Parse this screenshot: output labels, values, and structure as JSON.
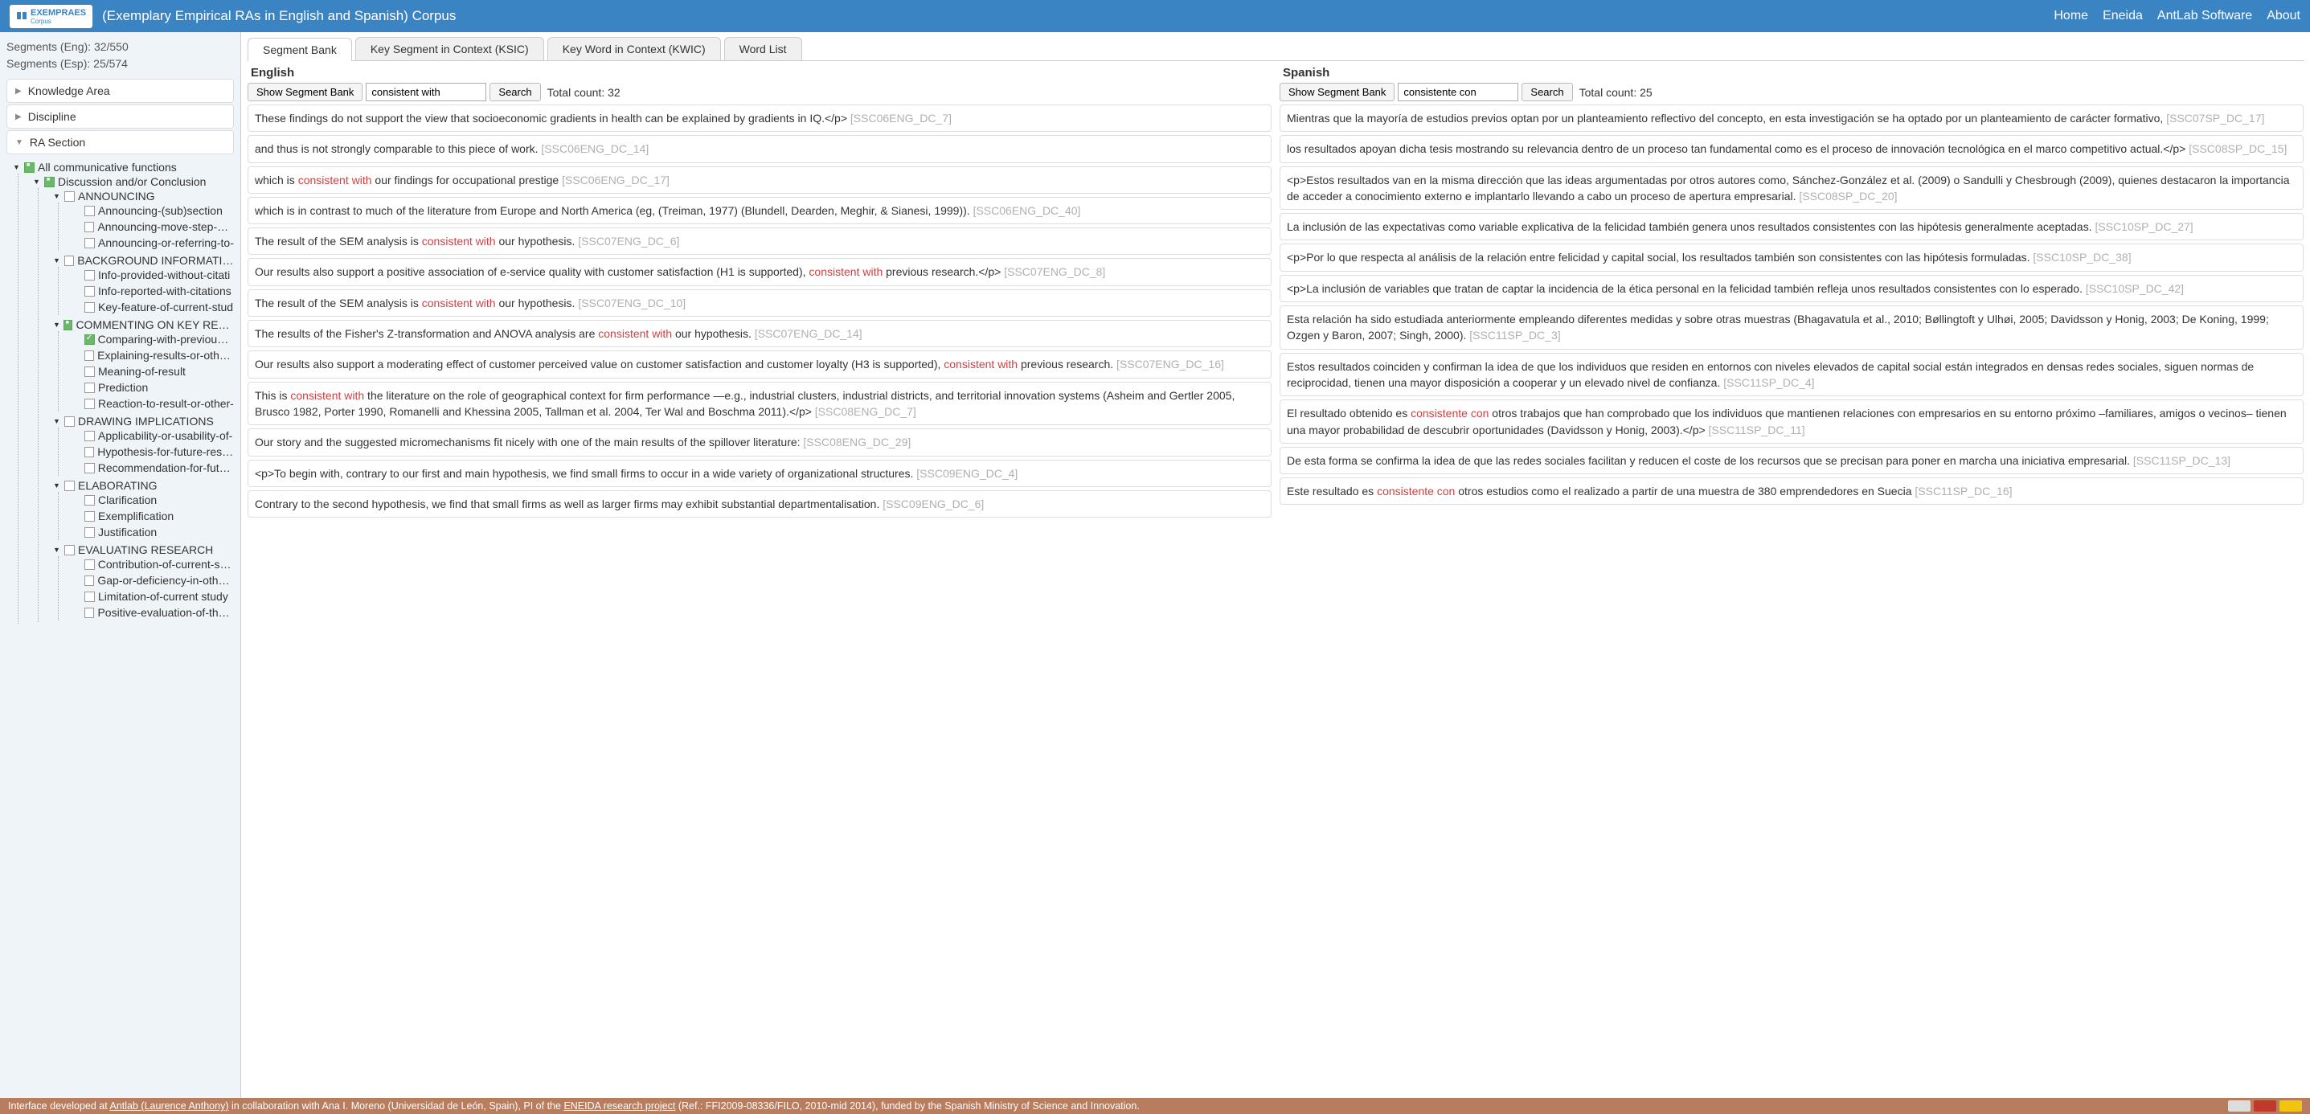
{
  "header": {
    "logo_text": "EXEMPRAES",
    "logo_sub": "Corpus",
    "title": "(Exemplary Empirical RAs in English and Spanish) Corpus",
    "nav": [
      "Home",
      "Eneida",
      "AntLab Software",
      "About"
    ]
  },
  "sidebar": {
    "stats_eng": "Segments (Eng): 32/550",
    "stats_esp": "Segments (Esp): 25/574",
    "accordions": [
      {
        "label": "Knowledge Area",
        "expanded": false
      },
      {
        "label": "Discipline",
        "expanded": false
      },
      {
        "label": "RA Section",
        "expanded": true
      }
    ],
    "tree": {
      "root": {
        "label": "All communicative functions",
        "state": "partial",
        "children": [
          {
            "label": "Discussion and/or Conclusion",
            "state": "partial",
            "expanded": true,
            "children": [
              {
                "label": "ANNOUNCING",
                "state": "",
                "expanded": true,
                "children": [
                  {
                    "label": "Announcing-(sub)section",
                    "state": ""
                  },
                  {
                    "label": "Announcing-move-step-or-p",
                    "state": ""
                  },
                  {
                    "label": "Announcing-or-referring-to-",
                    "state": ""
                  }
                ]
              },
              {
                "label": "BACKGROUND INFORMATION",
                "state": "",
                "expanded": true,
                "children": [
                  {
                    "label": "Info-provided-without-citati",
                    "state": ""
                  },
                  {
                    "label": "Info-reported-with-citations",
                    "state": ""
                  },
                  {
                    "label": "Key-feature-of-current-stud",
                    "state": ""
                  }
                ]
              },
              {
                "label": "COMMENTING ON KEY RESULTS",
                "state": "partial",
                "expanded": true,
                "children": [
                  {
                    "label": "Comparing-with-previous-re",
                    "state": "checked"
                  },
                  {
                    "label": "Explaining-results-or-other-p",
                    "state": ""
                  },
                  {
                    "label": "Meaning-of-result",
                    "state": ""
                  },
                  {
                    "label": "Prediction",
                    "state": ""
                  },
                  {
                    "label": "Reaction-to-result-or-other-",
                    "state": ""
                  }
                ]
              },
              {
                "label": "DRAWING IMPLICATIONS",
                "state": "",
                "expanded": true,
                "children": [
                  {
                    "label": "Applicability-or-usability-of-",
                    "state": ""
                  },
                  {
                    "label": "Hypothesis-for-future-resear",
                    "state": ""
                  },
                  {
                    "label": "Recommendation-for-future",
                    "state": ""
                  }
                ]
              },
              {
                "label": "ELABORATING",
                "state": "",
                "expanded": true,
                "children": [
                  {
                    "label": "Clarification",
                    "state": ""
                  },
                  {
                    "label": "Exemplification",
                    "state": ""
                  },
                  {
                    "label": "Justification",
                    "state": ""
                  }
                ]
              },
              {
                "label": "EVALUATING RESEARCH",
                "state": "",
                "expanded": true,
                "children": [
                  {
                    "label": "Contribution-of-current-stud",
                    "state": ""
                  },
                  {
                    "label": "Gap-or-deficiency-in-others-",
                    "state": ""
                  },
                  {
                    "label": "Limitation-of-current study",
                    "state": ""
                  },
                  {
                    "label": "Positive-evaluation-of-the-st",
                    "state": ""
                  }
                ]
              }
            ]
          }
        ]
      }
    }
  },
  "tabs": [
    "Segment Bank",
    "Key Segment in Context (KSIC)",
    "Key Word in Context (KWIC)",
    "Word List"
  ],
  "active_tab": 0,
  "panels": {
    "english": {
      "title": "English",
      "show_btn": "Show Segment Bank",
      "search_value": "consistent with",
      "search_btn": "Search",
      "total": "Total count: 32",
      "highlight": "consistent with",
      "segments": [
        {
          "text": "These findings do not support the view that socioeconomic gradients in health can be explained by gradients in IQ.</p>",
          "ref": "[SSC06ENG_DC_7]"
        },
        {
          "text": "and thus is not strongly comparable to this piece of work.",
          "ref": "[SSC06ENG_DC_14]"
        },
        {
          "text": "which is consistent with our findings for occupational prestige",
          "ref": "[SSC06ENG_DC_17]"
        },
        {
          "text": "which is in contrast to much of the literature from Europe and North America (eg, (Treiman, 1977) (Blundell, Dearden, Meghir, & Sianesi, 1999)).",
          "ref": "[SSC06ENG_DC_40]"
        },
        {
          "text": "The result of the SEM analysis is consistent with our hypothesis.",
          "ref": "[SSC07ENG_DC_6]"
        },
        {
          "text": "Our results also support a positive association of e-service quality with customer satisfaction (H1 is supported), consistent with previous research.</p>",
          "ref": "[SSC07ENG_DC_8]"
        },
        {
          "text": "The result of the SEM analysis is consistent with our hypothesis.",
          "ref": "[SSC07ENG_DC_10]"
        },
        {
          "text": "The results of the Fisher's Z-transformation and ANOVA analysis are consistent with our hypothesis.",
          "ref": "[SSC07ENG_DC_14]"
        },
        {
          "text": "Our results also support a moderating effect of customer perceived value on customer satisfaction and customer loyalty (H3 is supported), consistent with previous research.",
          "ref": "[SSC07ENG_DC_16]"
        },
        {
          "text": "This is consistent with the literature on the role of geographical context for firm performance —e.g., industrial clusters, industrial districts, and territorial innovation systems (Asheim and Gertler 2005, Brusco 1982, Porter 1990, Romanelli and Khessina 2005, Tallman et al. 2004, Ter Wal and Boschma 2011).</p>",
          "ref": "[SSC08ENG_DC_7]"
        },
        {
          "text": "Our story and the suggested micromechanisms fit nicely with one of the main results of the spillover literature:",
          "ref": "[SSC08ENG_DC_29]"
        },
        {
          "text": "<p>To begin with, contrary to our first and main hypothesis, we find small firms to occur in a wide variety of organizational structures.",
          "ref": "[SSC09ENG_DC_4]"
        },
        {
          "text": "Contrary to the second hypothesis, we find that small firms as well as larger firms may exhibit substantial departmentalisation.",
          "ref": "[SSC09ENG_DC_6]"
        }
      ]
    },
    "spanish": {
      "title": "Spanish",
      "show_btn": "Show Segment Bank",
      "search_value": "consistente con",
      "search_btn": "Search",
      "total": "Total count: 25",
      "highlight": "consistente con",
      "segments": [
        {
          "text": "Mientras que la mayoría de estudios previos optan por un planteamiento reflectivo del concepto, en esta investigación se ha optado por un planteamiento de carácter formativo,",
          "ref": "[SSC07SP_DC_17]"
        },
        {
          "text": "los resultados apoyan dicha tesis mostrando su relevancia dentro de un proceso tan fundamental como es el proceso de innovación tecnológica en el marco competitivo actual.</p>",
          "ref": "[SSC08SP_DC_15]"
        },
        {
          "text": "<p>Estos resultados van en la misma dirección que las ideas argumentadas por otros autores como, Sánchez-González et al. (2009) o Sandulli y Chesbrough (2009), quienes destacaron la importancia de acceder a conocimiento externo e implantarlo llevando a cabo un proceso de apertura empresarial.",
          "ref": "[SSC08SP_DC_20]"
        },
        {
          "text": "La inclusión de las expectativas como variable explicativa de la felicidad también genera unos resultados consistentes con las hipótesis generalmente aceptadas.",
          "ref": "[SSC10SP_DC_27]"
        },
        {
          "text": "<p>Por lo que respecta al análisis de la relación entre felicidad y capital social, los resultados también son consistentes con las hipótesis formuladas.",
          "ref": "[SSC10SP_DC_38]"
        },
        {
          "text": "<p>La inclusión de variables que tratan de captar la incidencia de la ética personal en la felicidad también refleja unos resultados consistentes con lo esperado.",
          "ref": "[SSC10SP_DC_42]"
        },
        {
          "text": "Esta relación ha sido estudiada anteriormente empleando diferentes medidas y sobre otras muestras (Bhagavatula et al., 2010; Bøllingtoft y Ulhøi, 2005; Davidsson y Honig, 2003; De Koning, 1999; Ozgen y Baron, 2007; Singh, 2000).",
          "ref": "[SSC11SP_DC_3]"
        },
        {
          "text": "Estos resultados coinciden y confirman la idea de que los individuos que residen en entornos con niveles elevados de capital social están integrados en densas redes sociales, siguen normas de reciprocidad, tienen una mayor disposición a cooperar y un elevado nivel de confianza.",
          "ref": "[SSC11SP_DC_4]"
        },
        {
          "text": "El resultado obtenido es consistente con otros trabajos que han comprobado que los individuos que mantienen relaciones con empresarios en su entorno próximo –familiares, amigos o vecinos– tienen una mayor probabilidad de descubrir oportunidades (Davidsson y Honig, 2003).</p>",
          "ref": "[SSC11SP_DC_11]"
        },
        {
          "text": "De esta forma se confirma la idea de que las redes sociales facilitan y reducen el coste de los recursos que se precisan para poner en marcha una iniciativa empresarial.",
          "ref": "[SSC11SP_DC_13]"
        },
        {
          "text": "Este resultado es consistente con otros estudios como el realizado a partir de una muestra de 380 emprendedores en Suecia",
          "ref": "[SSC11SP_DC_16]"
        }
      ]
    }
  },
  "color_bars": [
    "#1030c0",
    "#c03030",
    "#30a030"
  ],
  "footer": {
    "pre": "Interface developed at ",
    "link1": "Antlab (Laurence Anthony)",
    "mid1": " in collaboration with Ana I. Moreno (Universidad de León, Spain), PI of the ",
    "link2": "ENEIDA research project",
    "post": " (Ref.: FFI2009-08336/FILO, 2010-mid 2014), funded by the Spanish Ministry of Science and Innovation."
  }
}
